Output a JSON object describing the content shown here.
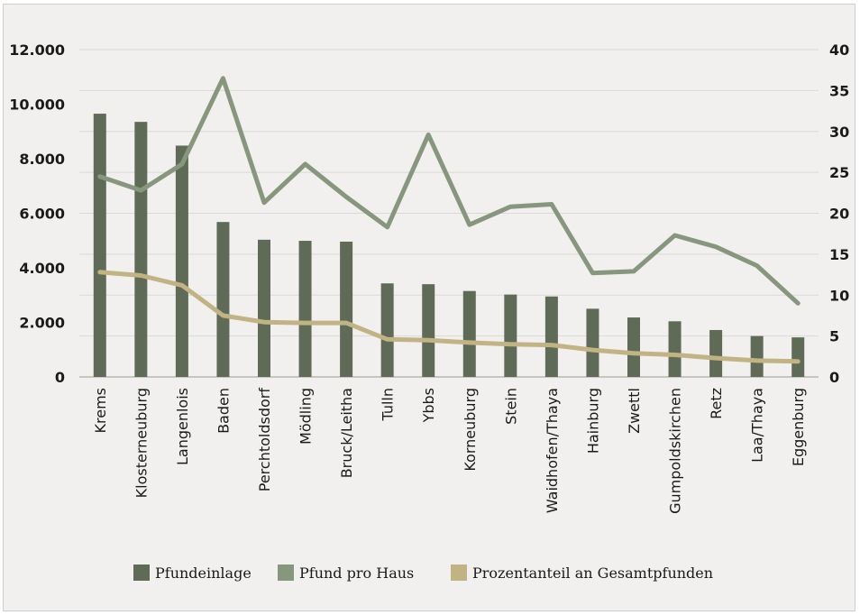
{
  "chart_data": {
    "type": "bar",
    "title": "",
    "categories": [
      "Krems",
      "Klosterneuburg",
      "Langenlois",
      "Baden",
      "Perchtoldsdorf",
      "Mödling",
      "Bruck/Leitha",
      "Tulln",
      "Ybbs",
      "Korneuburg",
      "Stein",
      "Waidhofen/Thaya",
      "Hainburg",
      "Zwettl",
      "Gumpoldskirchen",
      "Retz",
      "Laa/Thaya",
      "Eggenburg"
    ],
    "series": [
      {
        "name": "Pfundeinlage",
        "type": "bar",
        "axis": "left",
        "color": "#5f6b56",
        "values": [
          9650,
          9350,
          8480,
          5680,
          5030,
          4990,
          4960,
          3430,
          3400,
          3150,
          3020,
          2950,
          2500,
          2180,
          2040,
          1720,
          1500,
          1450
        ]
      },
      {
        "name": "Pfund pro Haus",
        "type": "line",
        "axis": "right",
        "color": "#87977d",
        "values": [
          24.5,
          22.8,
          26.0,
          36.5,
          21.3,
          26.0,
          22.0,
          18.3,
          29.6,
          18.6,
          20.8,
          21.1,
          12.7,
          12.9,
          17.3,
          15.9,
          13.6,
          9.0
        ]
      },
      {
        "name": "Prozentanteil an Gesamtpfunden",
        "type": "line",
        "axis": "right",
        "color": "#c1b383",
        "values": [
          12.8,
          12.4,
          11.2,
          7.5,
          6.7,
          6.6,
          6.6,
          4.6,
          4.5,
          4.2,
          4.0,
          3.9,
          3.3,
          2.9,
          2.7,
          2.3,
          2.0,
          1.9
        ]
      }
    ],
    "y_left": {
      "range": [
        0,
        12000
      ],
      "ticks": [
        "0",
        "2.000",
        "4.000",
        "6.000",
        "8.000",
        "10.000",
        "12.000"
      ]
    },
    "y_right": {
      "range": [
        0,
        40
      ],
      "ticks": [
        "0",
        "5",
        "10",
        "15",
        "20",
        "25",
        "30",
        "35",
        "40"
      ]
    },
    "grid": true,
    "legend": "bottom"
  }
}
